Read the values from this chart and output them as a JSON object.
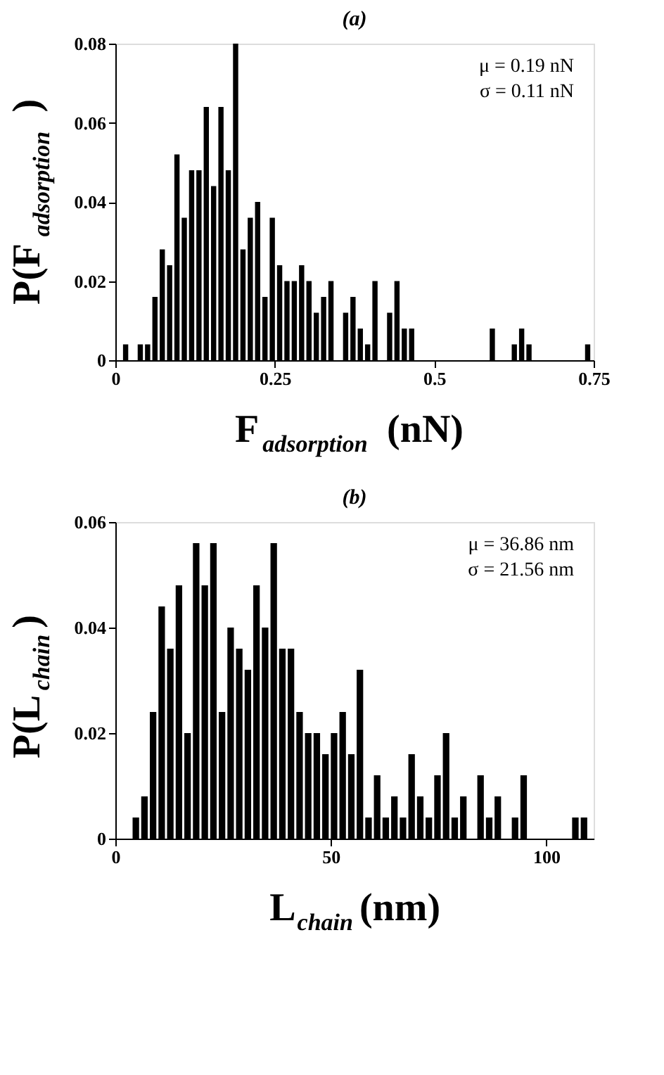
{
  "chart_data": [
    {
      "type": "histogram",
      "title": "(a)",
      "xlabel": "F$_{adsorption}$ (nN)",
      "ylabel": "P(F$_{adsorption}$)",
      "color": "#000000",
      "grid": false,
      "annotations": [
        "μ = 0.19 nN",
        "σ = 0.11  nN"
      ],
      "bins": [
        0.012,
        0.0235,
        0.035,
        0.0465,
        0.058,
        0.0695,
        0.081,
        0.0925,
        0.104,
        0.1155,
        0.127,
        0.1385,
        0.15,
        0.1615,
        0.173,
        0.1845,
        0.196,
        0.2075,
        0.219,
        0.2305,
        0.242,
        0.2535,
        0.265,
        0.2765,
        0.288,
        0.2995,
        0.311,
        0.3225,
        0.334,
        0.3455,
        0.357,
        0.3685,
        0.38,
        0.3915,
        0.403,
        0.4145,
        0.426,
        0.4375,
        0.449,
        0.4605,
        0.472,
        0.4835,
        0.495,
        0.5065,
        0.518,
        0.5295,
        0.541,
        0.5525,
        0.564,
        0.5755,
        0.587,
        0.5985,
        0.61,
        0.6215,
        0.633,
        0.6445,
        0.656,
        0.6675,
        0.679,
        0.6905,
        0.702,
        0.7135,
        0.725,
        0.7365,
        0.748
      ],
      "values": [
        0.004,
        0,
        0.004,
        0.004,
        0.016,
        0.028,
        0.024,
        0.052,
        0.036,
        0.048,
        0.048,
        0.064,
        0.044,
        0.064,
        0.048,
        0.08,
        0.028,
        0.036,
        0.04,
        0.016,
        0.036,
        0.024,
        0.02,
        0.02,
        0.024,
        0.02,
        0.012,
        0.016,
        0.02,
        0,
        0.012,
        0.016,
        0.008,
        0.004,
        0.02,
        0,
        0.012,
        0.02,
        0.008,
        0.008,
        0,
        0,
        0,
        0,
        0,
        0,
        0,
        0,
        0,
        0,
        0.008,
        0,
        0,
        0.004,
        0.008,
        0.004,
        0,
        0,
        0,
        0,
        0,
        0,
        0,
        0.004
      ],
      "xlim": [
        0,
        0.75
      ],
      "xticks": [
        0,
        0.25,
        0.5,
        0.75
      ],
      "ylim": [
        0,
        0.08
      ],
      "yticks": [
        0,
        0.02,
        0.04,
        0.06,
        0.08
      ]
    },
    {
      "type": "histogram",
      "title": "(b)",
      "xlabel": "L$_{chain}$ (nm)",
      "ylabel": "P(L$_{chain}$ )",
      "color": "#000000",
      "grid": false,
      "annotations": [
        "μ = 36.86 nm",
        "σ = 21.56 nm"
      ],
      "bins": [
        4,
        6,
        8,
        10,
        12,
        14,
        16,
        18,
        20,
        22,
        24,
        26,
        28,
        30,
        32,
        34,
        36,
        38,
        40,
        42,
        44,
        46,
        48,
        50,
        52,
        54,
        56,
        58,
        60,
        62,
        64,
        66,
        68,
        70,
        72,
        74,
        76,
        78,
        80,
        82,
        84,
        86,
        88,
        90,
        92,
        94,
        96,
        98,
        100,
        102,
        104,
        106,
        108,
        110
      ],
      "values": [
        0.004,
        0.008,
        0.024,
        0.044,
        0.036,
        0.048,
        0.02,
        0.056,
        0.048,
        0.056,
        0.024,
        0.04,
        0.036,
        0.032,
        0.048,
        0.04,
        0.056,
        0.036,
        0.036,
        0.024,
        0.02,
        0.02,
        0.016,
        0.02,
        0.024,
        0.016,
        0.032,
        0.004,
        0.012,
        0.004,
        0.008,
        0.004,
        0.016,
        0.008,
        0.004,
        0.012,
        0.02,
        0.004,
        0.008,
        0,
        0.012,
        0.004,
        0.008,
        0,
        0.004,
        0.012,
        0,
        0,
        0,
        0,
        0,
        0.004,
        0.004
      ],
      "xlim": [
        0,
        111
      ],
      "xticks": [
        0,
        50,
        100
      ],
      "ylim": [
        0,
        0.06
      ],
      "yticks": [
        0,
        0.02,
        0.04,
        0.06
      ]
    }
  ]
}
